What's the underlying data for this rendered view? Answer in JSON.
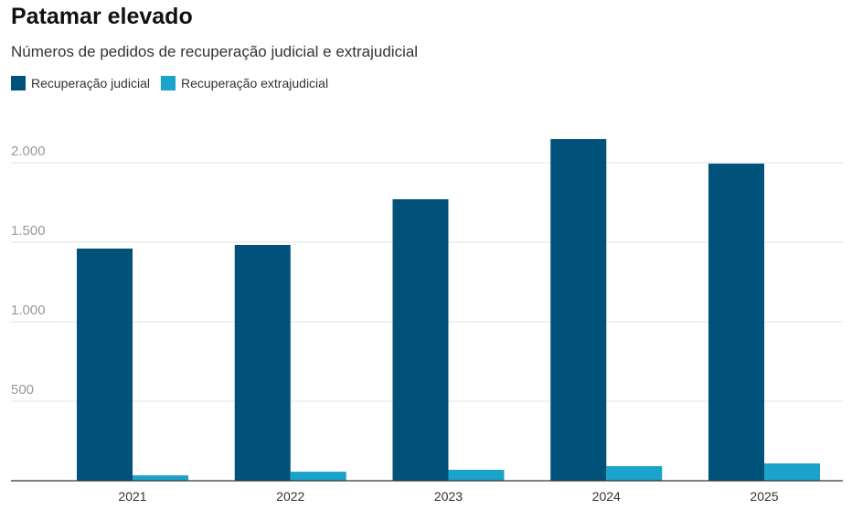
{
  "chart_data": {
    "type": "bar",
    "title": "Patamar elevado",
    "subtitle": "Números de pedidos de recuperação judicial e extrajudicial",
    "categories": [
      "2021",
      "2022",
      "2023",
      "2024",
      "2025"
    ],
    "series": [
      {
        "name": "Recuperação judicial",
        "color": "#00527a",
        "values": [
          1460,
          1483,
          1770,
          2149,
          1994
        ]
      },
      {
        "name": "Recuperação extrajudicial",
        "color": "#1ba3cc",
        "values": [
          34,
          57,
          69,
          92,
          109
        ]
      }
    ],
    "ylim": [
      0,
      2150
    ],
    "yticks": [
      500,
      1000,
      1500,
      2000
    ],
    "ytick_labels": [
      "500",
      "1.000",
      "1.500",
      "2.000"
    ],
    "grid": true,
    "legend": "top-left"
  }
}
